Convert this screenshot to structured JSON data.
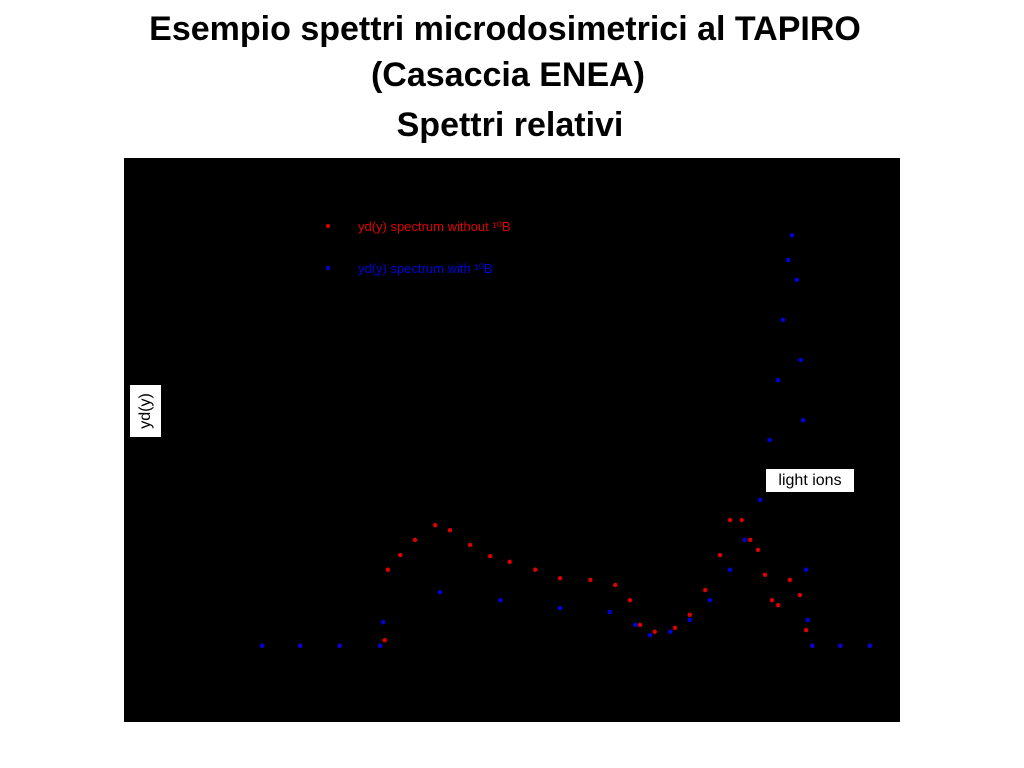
{
  "chart_data": {
    "type": "scatter",
    "title": [
      "Esempio spettri microdosimetrici al TAPIRO",
      "(Casaccia ENEA)",
      "Spettri relativi"
    ],
    "y_label": "yd(y)",
    "annotation": "light ions",
    "xlim": [
      0,
      100
    ],
    "ylim": [
      0,
      100
    ],
    "series": [
      {
        "name": "yd(y) spectrum without ¹⁰B",
        "color": "#e00000",
        "x": [
          17.8,
          22.7,
          27.8,
          33.0,
          33.6,
          34.0,
          35.6,
          37.5,
          40.1,
          42.0,
          44.6,
          47.2,
          49.7,
          53.0,
          56.2,
          60.1,
          63.3,
          65.2,
          66.5,
          68.4,
          71.0,
          72.9,
          74.9,
          76.8,
          78.1,
          79.6,
          80.7,
          81.7,
          82.6,
          83.5,
          84.3,
          85.8,
          87.1,
          87.9,
          88.7,
          92.3,
          96.1
        ],
        "values": [
          13.5,
          13.5,
          13.5,
          13.5,
          14.5,
          27.0,
          29.6,
          32.3,
          34.9,
          34.0,
          31.4,
          29.4,
          28.4,
          27.0,
          25.5,
          25.2,
          24.3,
          21.6,
          17.2,
          16.0,
          16.7,
          19.0,
          23.4,
          29.6,
          35.8,
          35.8,
          32.3,
          30.5,
          26.1,
          21.6,
          20.7,
          25.2,
          22.5,
          16.3,
          13.5,
          13.5,
          13.5
        ]
      },
      {
        "name": "yd(y) spectrum with ¹⁰B",
        "color": "#0000e0",
        "x": [
          17.8,
          22.7,
          27.8,
          33.0,
          33.4,
          40.7,
          48.5,
          56.2,
          62.6,
          65.9,
          67.8,
          70.4,
          72.9,
          75.5,
          78.1,
          80.0,
          82.0,
          83.2,
          84.3,
          84.9,
          85.6,
          86.1,
          86.7,
          87.2,
          87.5,
          87.9,
          88.1,
          88.7,
          92.3,
          96.1
        ],
        "values": [
          13.5,
          13.5,
          13.5,
          13.5,
          17.7,
          23.0,
          21.6,
          20.2,
          19.5,
          17.2,
          15.4,
          16.0,
          18.1,
          21.6,
          27.0,
          32.3,
          39.4,
          50.0,
          60.6,
          71.3,
          81.9,
          86.3,
          78.4,
          64.2,
          53.5,
          27.0,
          18.1,
          13.5,
          13.5,
          13.5
        ]
      }
    ]
  }
}
